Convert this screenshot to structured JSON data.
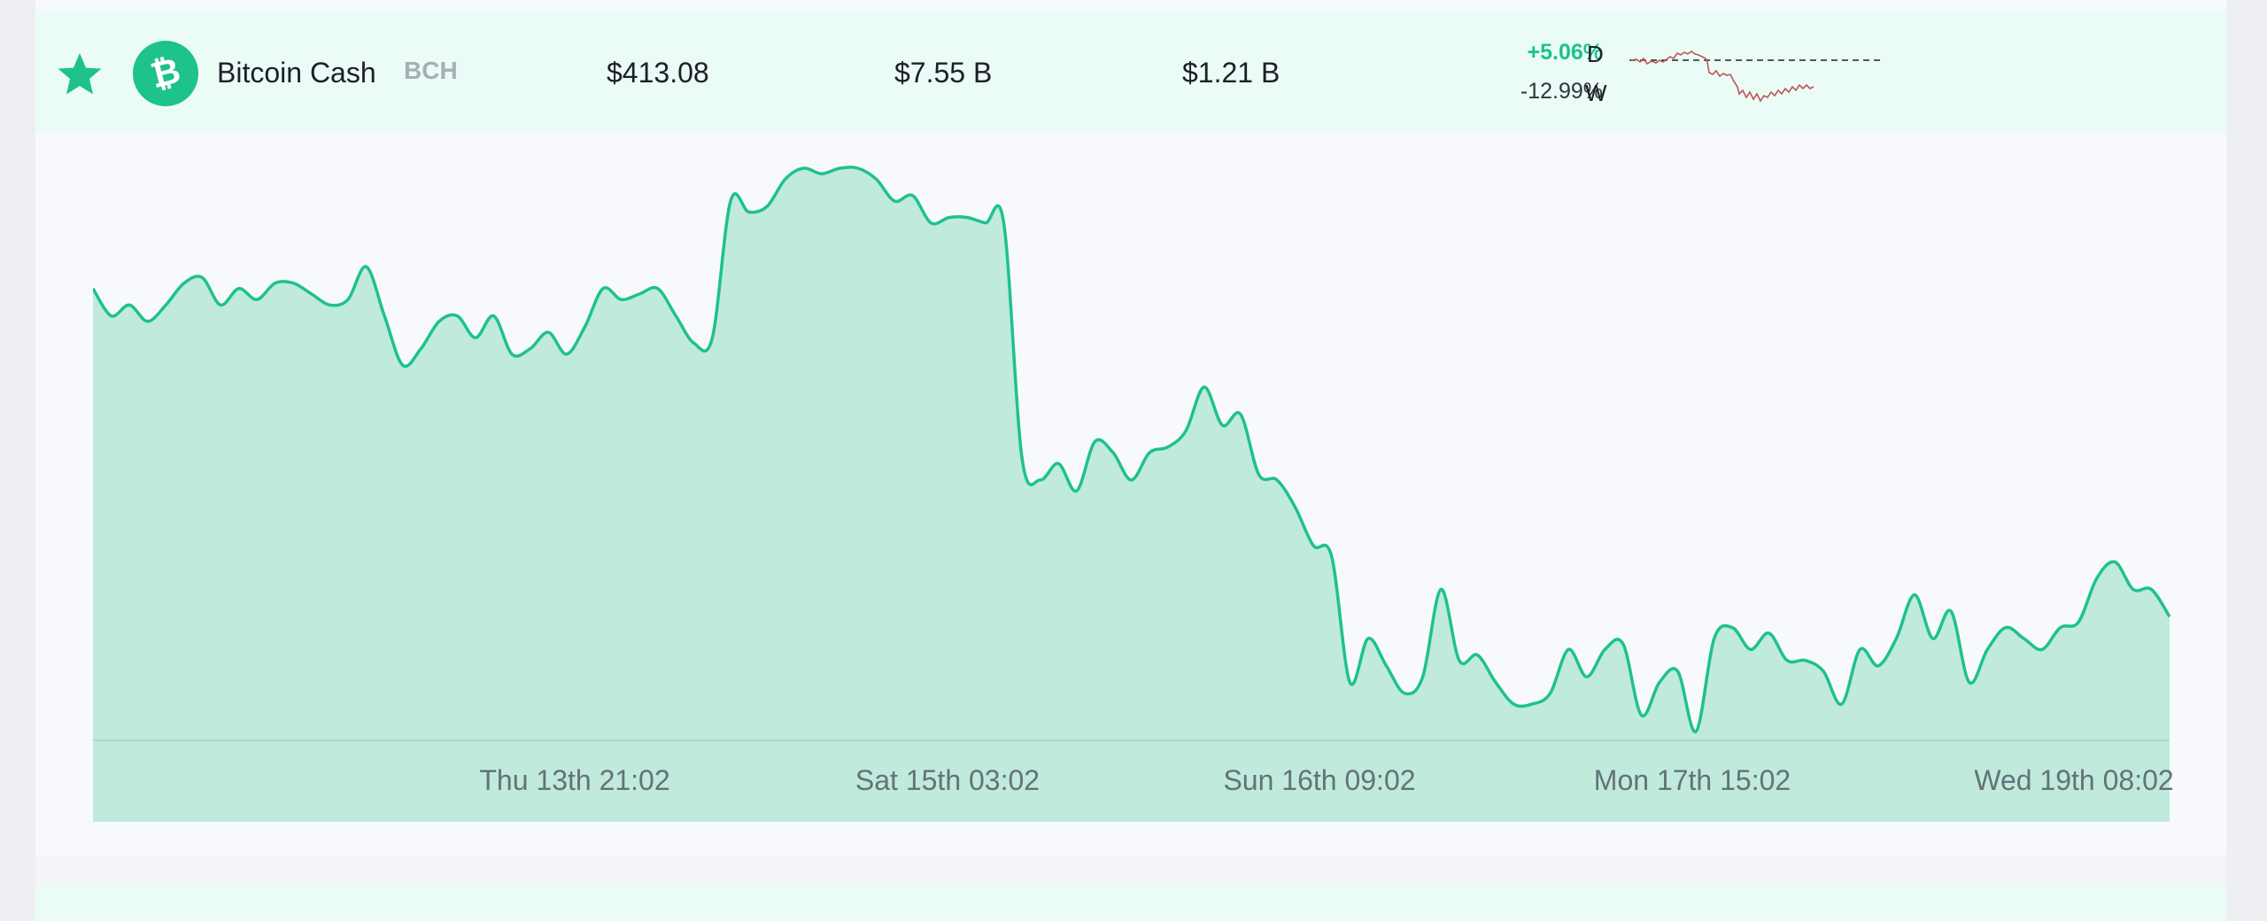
{
  "coin": {
    "name": "Bitcoin Cash",
    "symbol": "BCH",
    "price": "$413.08",
    "market_cap": "$7.55 B",
    "volume": "$1.21 B",
    "change_day": "+5.06%",
    "change_day_label": "D",
    "change_week": "-12.99%",
    "change_week_label": "W",
    "favorite": true,
    "logo_icon": "bitcoin-cash-logo-icon",
    "star_icon": "star-icon"
  },
  "colors": {
    "accent": "#1ec28b",
    "area_fill": "#c0eadb",
    "sparkline_down": "#c0555a",
    "row_bg": "#eafcf5"
  },
  "chart_data": {
    "type": "area",
    "x_tick_labels": [
      "Thu 13th 21:02",
      "Sat 15th 03:02",
      "Sun 16th 09:02",
      "Mon 17th 15:02",
      "Wed 19th 08:02"
    ],
    "values": [
      450,
      445,
      447,
      444,
      447,
      451,
      452,
      447,
      450,
      448,
      451,
      451,
      449,
      447,
      448,
      454,
      445,
      436,
      439,
      444,
      445,
      441,
      445,
      438,
      439,
      442,
      438,
      443,
      450,
      448,
      449,
      450,
      445,
      440,
      441,
      466,
      464,
      465,
      470,
      472,
      471,
      472,
      472,
      470,
      466,
      467,
      462,
      463,
      463,
      462,
      462,
      419,
      415,
      418,
      413,
      422,
      420,
      415,
      420,
      421,
      424,
      432,
      425,
      427,
      416,
      415,
      410,
      403,
      401,
      378,
      386,
      381,
      376,
      379,
      395,
      382,
      383,
      378,
      374,
      374,
      376,
      384,
      379,
      384,
      385,
      372,
      378,
      380,
      369,
      386,
      388,
      384,
      387,
      382,
      382,
      380,
      374,
      384,
      381,
      386,
      394,
      386,
      391,
      378,
      384,
      388,
      386,
      384,
      388,
      389,
      397,
      400,
      395,
      395,
      390
    ]
  }
}
